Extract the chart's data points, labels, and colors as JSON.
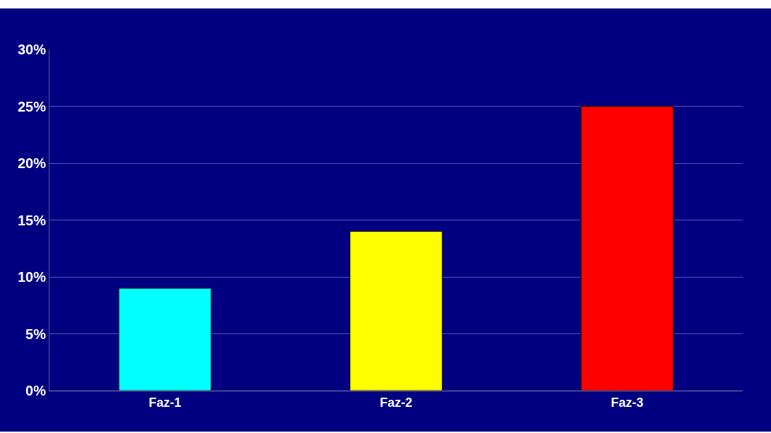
{
  "chart_data": {
    "type": "bar",
    "categories": [
      "Faz-1",
      "Faz-2",
      "Faz-3"
    ],
    "values": [
      9,
      14,
      25
    ],
    "colors": [
      "#00ffff",
      "#ffff00",
      "#ff0000"
    ],
    "ylim": [
      0,
      30
    ],
    "yticks": [
      {
        "value": 0,
        "label": "0%"
      },
      {
        "value": 5,
        "label": "5%"
      },
      {
        "value": 10,
        "label": "10%"
      },
      {
        "value": 15,
        "label": "15%"
      },
      {
        "value": 20,
        "label": "20%"
      },
      {
        "value": 25,
        "label": "25%"
      },
      {
        "value": 30,
        "label": "30%"
      }
    ],
    "grid": "y"
  }
}
